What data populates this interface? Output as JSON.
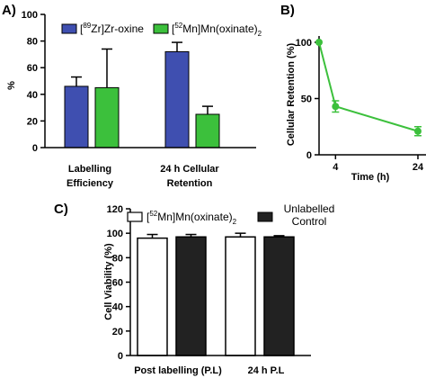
{
  "chart_data": [
    {
      "panel": "A)",
      "type": "bar",
      "ylabel": "%",
      "ylim": [
        0,
        100
      ],
      "yticks": [
        "0",
        "20",
        "40",
        "60",
        "80",
        "100"
      ],
      "categories": [
        {
          "line1": "Labelling",
          "line2": "Efficiency"
        },
        {
          "line1": "24 h Cellular",
          "line2": "Retention"
        }
      ],
      "series": [
        {
          "name_pre": "[",
          "name_sup": "89",
          "name_post": "Zr]Zr-oxine",
          "name_sub": "",
          "color": "#3f4fb0",
          "values": [
            46,
            72
          ],
          "errors": [
            7,
            7
          ]
        },
        {
          "name_pre": "[",
          "name_sup": "52",
          "name_post": "Mn]Mn(oxinate)",
          "name_sub": "2",
          "color": "#3cc03c",
          "values": [
            45,
            25
          ],
          "errors": [
            29,
            6
          ]
        }
      ]
    },
    {
      "panel": "B)",
      "type": "line",
      "ylabel": "Cellular Retention (%)",
      "xlabel": "Time (h)",
      "ylim": [
        0,
        100
      ],
      "yticks": [
        "0",
        "50",
        "100"
      ],
      "xticks": [
        "4",
        "24"
      ],
      "color": "#3cc03c",
      "x": [
        0,
        4,
        24
      ],
      "y": [
        100,
        43,
        21
      ],
      "errors": [
        0,
        5,
        4
      ]
    },
    {
      "panel": "C)",
      "type": "bar",
      "ylabel": "Cell Viability  (%)",
      "ylim": [
        0,
        120
      ],
      "yticks": [
        "0",
        "20",
        "40",
        "60",
        "80",
        "100",
        "120"
      ],
      "categories": [
        "Post labelling (P.L)",
        "24 h P.L"
      ],
      "series": [
        {
          "name_pre": "[",
          "name_sup": "52",
          "name_post": "Mn]Mn(oxinate)",
          "name_sub": "2",
          "color": "#ffffff",
          "values": [
            96,
            97
          ],
          "errors": [
            3,
            3
          ]
        },
        {
          "name_line1": "Unlabelled",
          "name_line2": "Control",
          "color": "#222222",
          "values": [
            97,
            97
          ],
          "errors": [
            2,
            1
          ]
        }
      ]
    }
  ]
}
